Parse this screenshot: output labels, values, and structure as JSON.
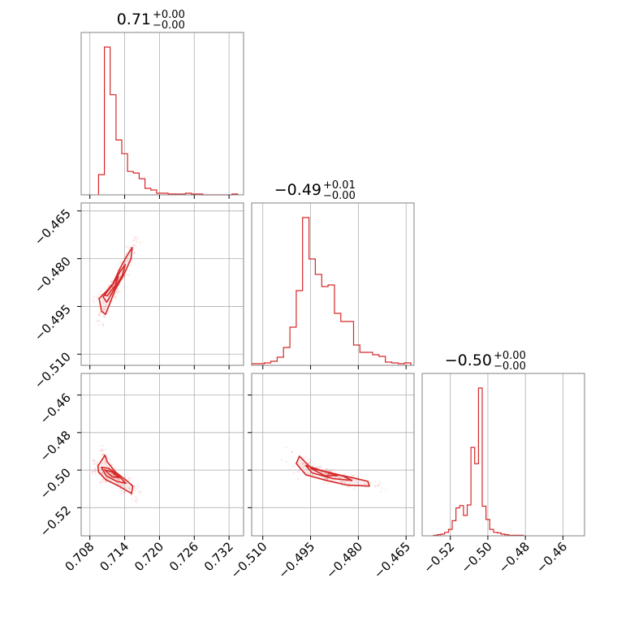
{
  "colors": {
    "accent": "#d62728",
    "grid": "#b0b0b0",
    "frame": "#808080"
  },
  "chart_data": {
    "type": "corner",
    "parameters": [
      {
        "title": {
          "value": "0.71",
          "plus": "+0.00",
          "minus": "−0.00"
        },
        "range": [
          0.7065,
          0.7345
        ],
        "ticks": [
          0.708,
          0.714,
          0.72,
          0.726,
          0.732
        ],
        "tick_labels": [
          "0.708",
          "0.714",
          "0.720",
          "0.726",
          "0.732"
        ]
      },
      {
        "title": {
          "value": "−0.49",
          "plus": "+0.01",
          "minus": "−0.00"
        },
        "range": [
          -0.5135,
          -0.4625
        ],
        "ticks": [
          -0.51,
          -0.495,
          -0.48,
          -0.465
        ],
        "tick_labels": [
          "−0.510",
          "−0.495",
          "−0.480",
          "−0.465"
        ]
      },
      {
        "title": {
          "value": "−0.50",
          "plus": "+0.00",
          "minus": "−0.00"
        },
        "range": [
          -0.535,
          -0.4485
        ],
        "ticks": [
          -0.52,
          -0.5,
          -0.48,
          -0.46
        ],
        "tick_labels": [
          "−0.52",
          "−0.50",
          "−0.48",
          "−0.46"
        ]
      }
    ],
    "histograms": [
      {
        "param": 0,
        "bin_edges": [
          0.7095,
          0.7105,
          0.7115,
          0.7125,
          0.7135,
          0.7145,
          0.7155,
          0.7165,
          0.7175,
          0.7185,
          0.7195,
          0.7205,
          0.7215,
          0.7225,
          0.7235,
          0.7245,
          0.7255,
          0.7265,
          0.7275,
          0.7285,
          0.7295,
          0.7305,
          0.7315,
          0.7325,
          0.7335
        ],
        "counts": [
          25,
          183,
          124,
          68,
          51,
          29,
          27,
          20,
          8,
          6,
          2,
          2,
          1,
          1,
          1,
          2,
          1,
          1,
          0,
          0,
          0,
          0,
          0,
          1
        ]
      },
      {
        "param": 1,
        "bin_edges": [
          -0.5135,
          -0.5115,
          -0.5095,
          -0.5075,
          -0.5055,
          -0.5035,
          -0.5015,
          -0.4995,
          -0.4975,
          -0.4955,
          -0.4935,
          -0.4915,
          -0.4895,
          -0.4875,
          -0.4855,
          -0.4835,
          -0.4815,
          -0.4795,
          -0.4775,
          -0.4755,
          -0.4735,
          -0.4715,
          -0.4695,
          -0.4675,
          -0.4655,
          -0.4635
        ],
        "counts": [
          2,
          2,
          3,
          5,
          10,
          22,
          47,
          92,
          182,
          131,
          112,
          97,
          99,
          64,
          54,
          54,
          25,
          16,
          16,
          13,
          11,
          4,
          3,
          2,
          3
        ]
      },
      {
        "param": 2,
        "bin_edges": [
          -0.529,
          -0.527,
          -0.525,
          -0.523,
          -0.521,
          -0.519,
          -0.517,
          -0.515,
          -0.513,
          -0.511,
          -0.509,
          -0.507,
          -0.505,
          -0.503,
          -0.501,
          -0.499,
          -0.497,
          -0.495,
          -0.493,
          -0.491,
          -0.489,
          -0.487,
          -0.485,
          -0.483,
          -0.481
        ],
        "counts": [
          1,
          2,
          3,
          6,
          11,
          26,
          48,
          52,
          35,
          53,
          152,
          124,
          254,
          51,
          28,
          11,
          6,
          5,
          3,
          2,
          1,
          1,
          1,
          1
        ]
      }
    ],
    "pairs": [
      {
        "x": 0,
        "y": 1,
        "contours": [
          [
            [
              0.7096,
              -0.4925
            ],
            [
              0.7118,
              -0.4885
            ],
            [
              0.7132,
              -0.483
            ],
            [
              0.7146,
              -0.4784
            ],
            [
              0.7153,
              -0.4765
            ],
            [
              0.7151,
              -0.48
            ],
            [
              0.7139,
              -0.4848
            ],
            [
              0.7123,
              -0.49
            ],
            [
              0.7112,
              -0.4952
            ],
            [
              0.7107,
              -0.4975
            ],
            [
              0.71,
              -0.4965
            ]
          ],
          [
            [
              0.7103,
              -0.492
            ],
            [
              0.712,
              -0.488
            ],
            [
              0.7133,
              -0.4838
            ],
            [
              0.7141,
              -0.4818
            ],
            [
              0.7136,
              -0.4852
            ],
            [
              0.7122,
              -0.4895
            ],
            [
              0.7109,
              -0.4937
            ]
          ],
          [
            [
              0.7104,
              -0.4912
            ],
            [
              0.7118,
              -0.4882
            ],
            [
              0.7129,
              -0.4857
            ],
            [
              0.7124,
              -0.4883
            ],
            [
              0.711,
              -0.4917
            ]
          ]
        ]
      },
      {
        "x": 0,
        "y": 2,
        "contours": [
          [
            [
              0.7094,
              -0.4978
            ],
            [
              0.7106,
              -0.492
            ],
            [
              0.711,
              -0.4955
            ],
            [
              0.7124,
              -0.501
            ],
            [
              0.7143,
              -0.5055
            ],
            [
              0.7154,
              -0.5085
            ],
            [
              0.7152,
              -0.5125
            ],
            [
              0.7133,
              -0.509
            ],
            [
              0.7107,
              -0.505
            ],
            [
              0.7095,
              -0.501
            ]
          ],
          [
            [
              0.71,
              -0.4985
            ],
            [
              0.7112,
              -0.499
            ],
            [
              0.7128,
              -0.5025
            ],
            [
              0.7142,
              -0.507
            ],
            [
              0.7126,
              -0.506
            ],
            [
              0.7108,
              -0.503
            ]
          ],
          [
            [
              0.7105,
              -0.4998
            ],
            [
              0.7118,
              -0.501
            ],
            [
              0.713,
              -0.504
            ],
            [
              0.7118,
              -0.5035
            ]
          ]
        ]
      },
      {
        "x": 1,
        "y": 2,
        "contours": [
          [
            [
              -0.4985,
              -0.4926
            ],
            [
              -0.495,
              -0.4985
            ],
            [
              -0.489,
              -0.5015
            ],
            [
              -0.482,
              -0.504
            ],
            [
              -0.477,
              -0.506
            ],
            [
              -0.4765,
              -0.5085
            ],
            [
              -0.4835,
              -0.508
            ],
            [
              -0.49,
              -0.5055
            ],
            [
              -0.4965,
              -0.5025
            ],
            [
              -0.4995,
              -0.4965
            ]
          ],
          [
            [
              -0.4965,
              -0.4975
            ],
            [
              -0.491,
              -0.5005
            ],
            [
              -0.485,
              -0.503
            ],
            [
              -0.482,
              -0.5055
            ],
            [
              -0.488,
              -0.5045
            ],
            [
              -0.4945,
              -0.5015
            ]
          ],
          [
            [
              -0.495,
              -0.499
            ],
            [
              -0.49,
              -0.501
            ],
            [
              -0.4865,
              -0.503
            ],
            [
              -0.4905,
              -0.503
            ]
          ]
        ]
      }
    ],
    "grid": true,
    "title": ""
  }
}
